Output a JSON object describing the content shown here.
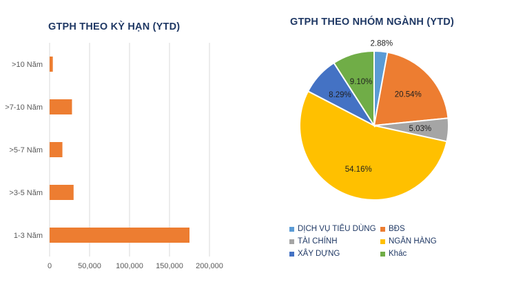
{
  "chart_data": [
    {
      "type": "bar",
      "orientation": "horizontal",
      "title": "GTPH THEO KỲ HẠN (YTD)",
      "categories": [
        ">10 Năm",
        ">7-10 Năm",
        ">5-7 Năm",
        ">3-5 Năm",
        "1-3 Năm"
      ],
      "values": [
        4000,
        28000,
        16000,
        30000,
        175000
      ],
      "xlim": [
        0,
        200000
      ],
      "xticks": [
        "0",
        "50,000",
        "100,000",
        "150,000",
        "200,000"
      ],
      "grid": true,
      "color": "#ed7d31"
    },
    {
      "type": "pie",
      "title": "GTPH THEO NHÓM NGÀNH (YTD)",
      "slices": [
        {
          "label": "DỊCH VỤ TIÊU DÙNG",
          "value": 2.88,
          "text": "2.88%",
          "color": "#5b9bd5"
        },
        {
          "label": "BĐS",
          "value": 20.54,
          "text": "20.54%",
          "color": "#ed7d31"
        },
        {
          "label": "TÀI CHÍNH",
          "value": 5.03,
          "text": "5.03%",
          "color": "#a5a5a5"
        },
        {
          "label": "NGÂN HÀNG",
          "value": 54.16,
          "text": "54.16%",
          "color": "#ffc000"
        },
        {
          "label": "XÂY DỰNG",
          "value": 8.29,
          "text": "8.29%",
          "color": "#4472c4"
        },
        {
          "label": "Khác",
          "value": 9.1,
          "text": "9.10%",
          "color": "#70ad47"
        }
      ],
      "legend": "bottom"
    }
  ]
}
